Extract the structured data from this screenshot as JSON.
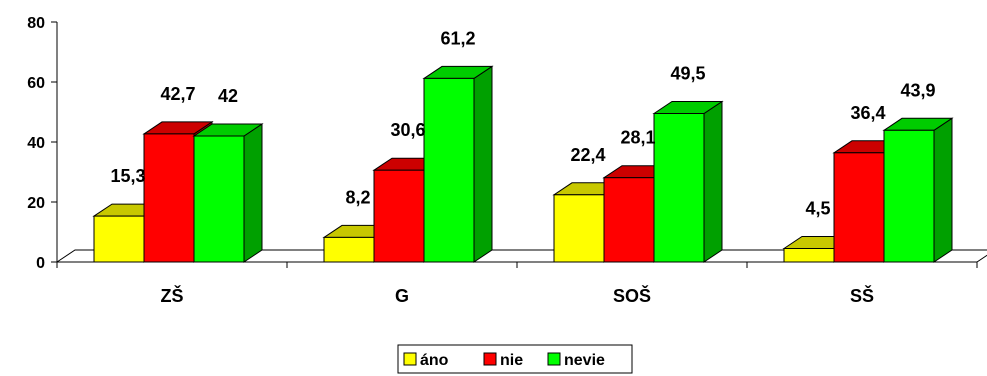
{
  "chart_data": {
    "type": "bar",
    "categories": [
      "ZŠ",
      "G",
      "SOŠ",
      "SŠ"
    ],
    "series": [
      {
        "name": "áno",
        "values": [
          15.3,
          8.2,
          22.4,
          4.5
        ],
        "labels": [
          "15,3",
          "8,2",
          "22,4",
          "4,5"
        ],
        "color": "#ffff00",
        "side_color": "#c8c800",
        "top_color": "#c8c800"
      },
      {
        "name": "nie",
        "values": [
          42.7,
          30.6,
          28.1,
          36.4
        ],
        "labels": [
          "42,7",
          "30,6",
          "28,1",
          "36,4"
        ],
        "color": "#ff0000",
        "side_color": "#b30000",
        "top_color": "#cc0000"
      },
      {
        "name": "nevie",
        "values": [
          42,
          61.2,
          49.5,
          43.9
        ],
        "labels": [
          "42",
          "61,2",
          "49,5",
          "43,9"
        ],
        "color": "#00ff00",
        "side_color": "#00a000",
        "top_color": "#00cc00"
      }
    ],
    "yticks": [
      {
        "value": 0,
        "label": "0"
      },
      {
        "value": 20,
        "label": "20"
      },
      {
        "value": 40,
        "label": "40"
      },
      {
        "value": 60,
        "label": "60"
      },
      {
        "value": 80,
        "label": "80"
      }
    ],
    "ylim": [
      0,
      80
    ],
    "title": "",
    "xlabel": "",
    "ylabel": "",
    "grid": false,
    "legend_position": "bottom",
    "three_d": true
  }
}
